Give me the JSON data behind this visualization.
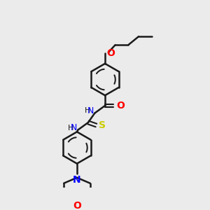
{
  "bg_color": "#ebebeb",
  "bond_color": "#1a1a1a",
  "atom_colors": {
    "O": "#ff0000",
    "N": "#0000ff",
    "S": "#cccc00",
    "H": "#1a1a1a",
    "C": "#1a1a1a"
  },
  "line_width": 1.8,
  "font_size": 9
}
